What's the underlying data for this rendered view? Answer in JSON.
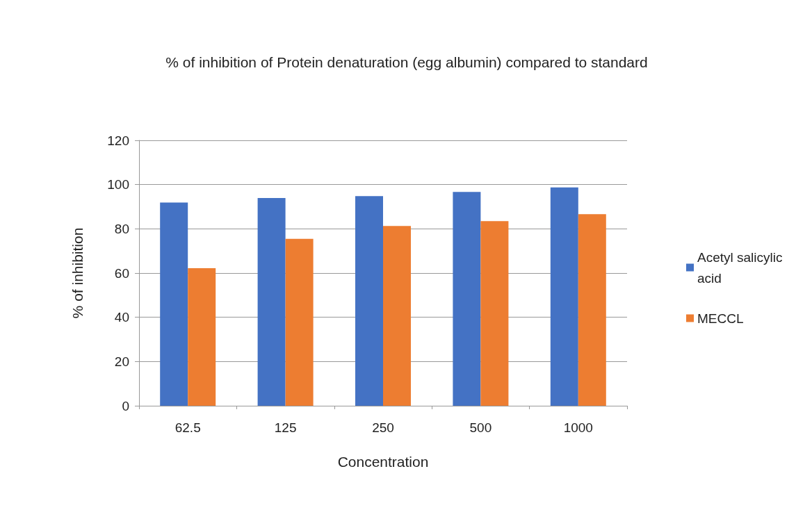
{
  "chart_data": {
    "type": "bar",
    "title": "% of inhibition of Protein denaturation (egg albumin) compared to standard",
    "xlabel": "Concentration",
    "ylabel": "% of inhibition",
    "categories": [
      "62.5",
      "125",
      "250",
      "500",
      "1000"
    ],
    "series": [
      {
        "name": "Acetyl salicylic acid",
        "color": "#4472c4",
        "values": [
          91.9,
          93.9,
          94.8,
          96.7,
          98.7
        ]
      },
      {
        "name": "MECCL",
        "color": "#ed7d31",
        "values": [
          62.2,
          75.5,
          81.3,
          83.5,
          86.6
        ]
      }
    ],
    "ylim": [
      0,
      120
    ],
    "yticks": [
      0,
      20,
      40,
      60,
      80,
      100,
      120
    ],
    "grid": "y",
    "legend": "right"
  }
}
